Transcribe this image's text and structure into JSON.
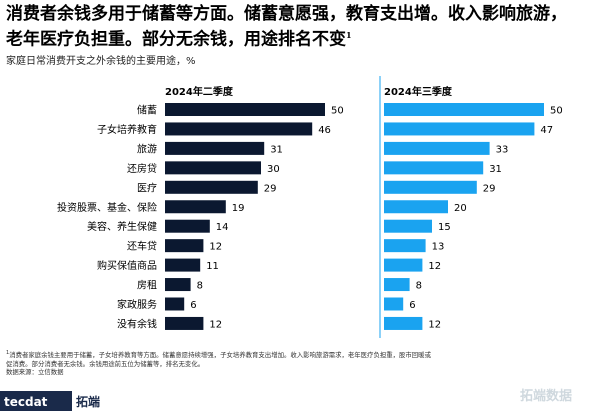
{
  "header": {
    "title_line1": "消费者余钱多用于储蓄等方面。储蓄意愿强，教育支出增。收入影响旅游，",
    "title_line2": "老年医疗负担重。部分无余钱，用途排名不变",
    "title_sup": "1",
    "subtitle": "家庭日常消费开支之外余钱的主要用途，%"
  },
  "colors": {
    "series1": "#0b1830",
    "series2": "#1aa3f0",
    "divider": "#1aa3f0"
  },
  "chart_data": {
    "type": "bar",
    "orientation": "horizontal",
    "categories": [
      "储蓄",
      "子女培养教育",
      "旅游",
      "还房贷",
      "医疗",
      "投资股票、基金、保险",
      "美容、养生保健",
      "还车贷",
      "购买保值商品",
      "房租",
      "家政服务",
      "没有余钱"
    ],
    "series": [
      {
        "name": "2024年二季度",
        "values": [
          50,
          46,
          31,
          30,
          29,
          19,
          14,
          12,
          11,
          8,
          6,
          12
        ]
      },
      {
        "name": "2024年三季度",
        "values": [
          50,
          47,
          33,
          31,
          29,
          20,
          15,
          13,
          12,
          8,
          6,
          12
        ]
      }
    ],
    "grid": false
  },
  "footnote": {
    "sup": "1",
    "line1": "消费者家庭余钱主要用于储蓄，子女培养教育等方面。储蓄意愿持续增强，子女培养教育支出增加。收入影响旅游需求，老年医疗负担重，股市回暖或",
    "line2": "促消费。部分消费者无余钱。余钱用途前五位为储蓄等，排名无变化。",
    "source": "数据来源：立信数据"
  },
  "branding": {
    "logo_text": "tecdat",
    "logo_cn": "拓端",
    "watermark": "拓端数据"
  }
}
